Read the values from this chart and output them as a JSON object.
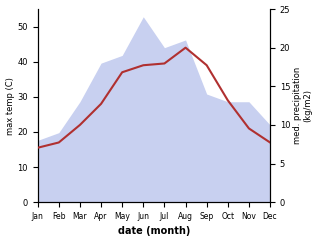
{
  "months": [
    "Jan",
    "Feb",
    "Mar",
    "Apr",
    "May",
    "Jun",
    "Jul",
    "Aug",
    "Sep",
    "Oct",
    "Nov",
    "Dec"
  ],
  "temp": [
    15.5,
    17.0,
    22.0,
    28.0,
    37.0,
    39.0,
    39.5,
    44.0,
    39.0,
    29.0,
    21.0,
    17.0
  ],
  "precip": [
    8,
    9,
    13,
    18,
    19,
    24,
    20,
    21,
    14,
    13,
    13,
    10
  ],
  "temp_color": "#b03030",
  "precip_fill_color": "#c8d0f0",
  "left_ylabel": "max temp (C)",
  "right_ylabel": "med. precipitation\n(kg/m2)",
  "xlabel": "date (month)",
  "ylim_left": [
    0,
    55
  ],
  "ylim_right": [
    0,
    25
  ],
  "yticks_left": [
    0,
    10,
    20,
    30,
    40,
    50
  ],
  "yticks_right": [
    0,
    5,
    10,
    15,
    20,
    25
  ],
  "figsize": [
    3.18,
    2.42
  ],
  "dpi": 100
}
